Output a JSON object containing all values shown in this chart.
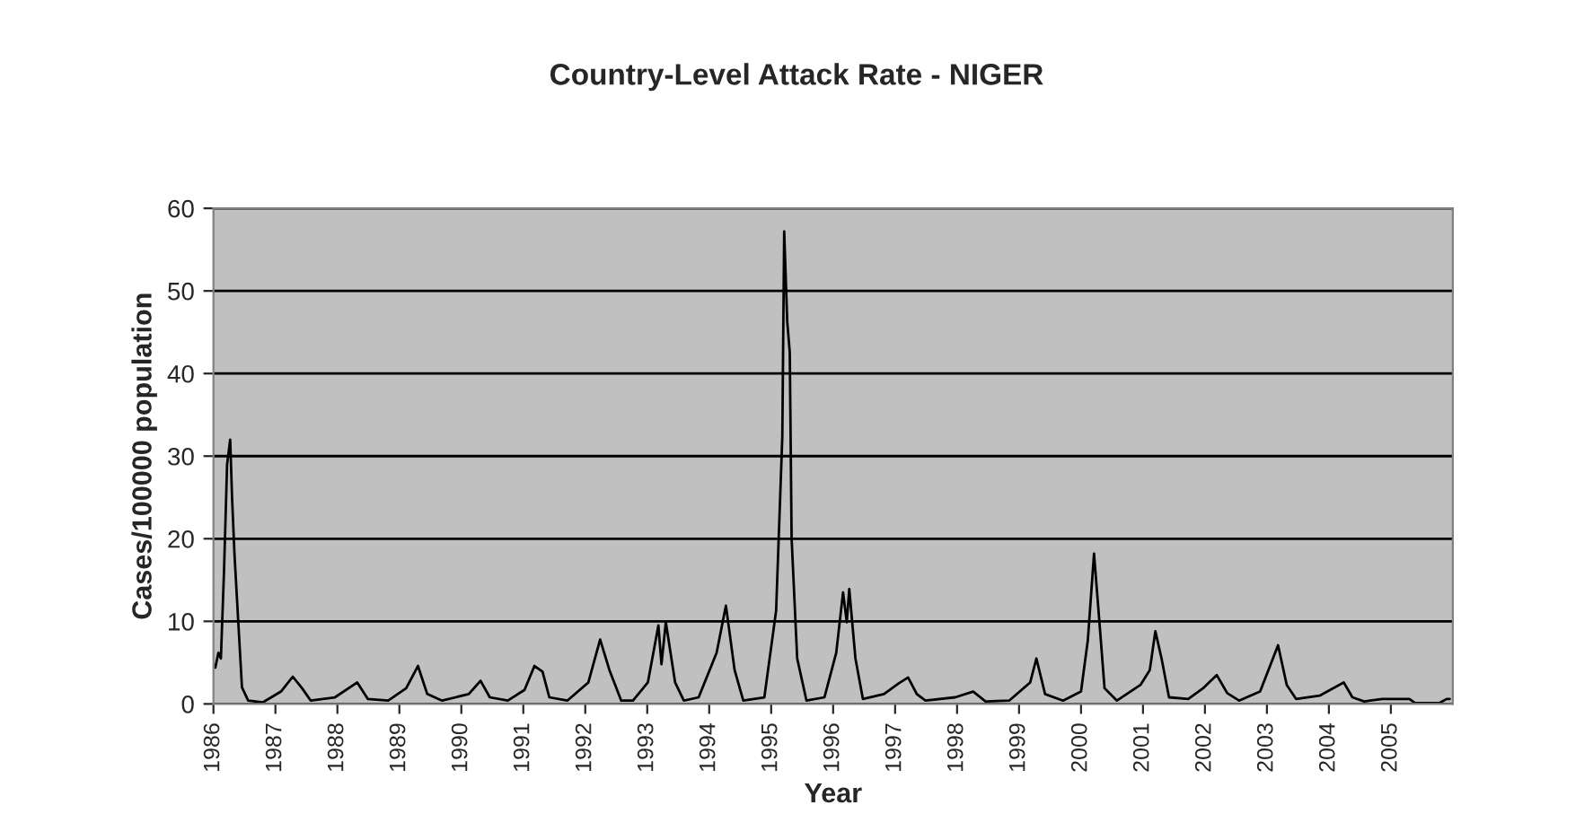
{
  "chart_data": {
    "type": "line",
    "title": "Country-Level Attack Rate - NIGER",
    "xlabel": "Year",
    "ylabel": "Cases/100000 population",
    "series": [
      {
        "color": "#000000",
        "x": [
          1986.03,
          1986.08,
          1986.12,
          1986.17,
          1986.22,
          1986.27,
          1986.3,
          1986.34,
          1986.4,
          1986.46,
          1986.56,
          1986.8,
          1987.09,
          1987.28,
          1987.43,
          1987.57,
          1987.96,
          1988.32,
          1988.49,
          1988.82,
          1989.11,
          1989.3,
          1989.45,
          1989.69,
          1990.12,
          1990.31,
          1990.46,
          1990.75,
          1991.02,
          1991.18,
          1991.31,
          1991.42,
          1991.71,
          1992.05,
          1992.24,
          1992.39,
          1992.58,
          1992.77,
          1993.01,
          1993.18,
          1993.23,
          1993.3,
          1993.45,
          1993.59,
          1993.83,
          1994.12,
          1994.27,
          1994.41,
          1994.55,
          1994.89,
          1995.08,
          1995.18,
          1995.21,
          1995.26,
          1995.3,
          1995.33,
          1995.42,
          1995.57,
          1995.86,
          1996.05,
          1996.16,
          1996.22,
          1996.26,
          1996.36,
          1996.48,
          1996.82,
          1997.06,
          1997.21,
          1997.35,
          1997.49,
          1997.97,
          1998.26,
          1998.46,
          1998.84,
          1999.18,
          1999.28,
          1999.42,
          1999.71,
          2000.0,
          2000.11,
          2000.21,
          2000.29,
          2000.38,
          2000.58,
          2000.96,
          2001.11,
          2001.2,
          2001.3,
          2001.42,
          2001.73,
          2001.97,
          2002.19,
          2002.36,
          2002.55,
          2002.89,
          2003.18,
          2003.32,
          2003.47,
          2003.85,
          2004.24,
          2004.38,
          2004.57,
          2004.86,
          2005.3,
          2005.39,
          2005.78,
          2005.9,
          2005.95
        ],
        "values": [
          4.4,
          6.2,
          5.5,
          16,
          29,
          32,
          25,
          18,
          10,
          2,
          0.4,
          0.2,
          1.5,
          3.3,
          1.9,
          0.4,
          0.8,
          2.6,
          0.6,
          0.4,
          1.9,
          4.6,
          1.2,
          0.4,
          1.2,
          2.8,
          0.8,
          0.4,
          1.7,
          4.6,
          3.9,
          0.8,
          0.4,
          2.6,
          7.8,
          4.1,
          0.4,
          0.4,
          2.6,
          9.5,
          4.8,
          9.9,
          2.6,
          0.4,
          0.8,
          6.2,
          11.9,
          4.1,
          0.4,
          0.8,
          11.3,
          32.4,
          57.2,
          46.2,
          42.6,
          20,
          5.5,
          0.4,
          0.8,
          6.2,
          13.5,
          9.9,
          13.9,
          5.5,
          0.6,
          1.2,
          2.5,
          3.2,
          1.2,
          0.4,
          0.8,
          1.5,
          0.3,
          0.4,
          2.6,
          5.5,
          1.2,
          0.4,
          1.5,
          7.7,
          18.2,
          10.6,
          1.9,
          0.4,
          2.3,
          4.1,
          8.8,
          5.5,
          0.8,
          0.6,
          1.9,
          3.5,
          1.3,
          0.4,
          1.5,
          7.1,
          2.3,
          0.6,
          1.0,
          2.6,
          0.8,
          0.3,
          0.6,
          0.6,
          0.1,
          0.1,
          0.6,
          0.6
        ]
      }
    ],
    "xlim": [
      1986,
      2006
    ],
    "xticks": [
      1986,
      1987,
      1988,
      1989,
      1990,
      1991,
      1992,
      1993,
      1994,
      1995,
      1996,
      1997,
      1998,
      1999,
      2000,
      2001,
      2002,
      2003,
      2004,
      2005
    ],
    "ylim": [
      0,
      60
    ],
    "yticks": [
      0,
      10,
      20,
      30,
      40,
      50,
      60
    ],
    "grid": "y",
    "legend": false
  }
}
